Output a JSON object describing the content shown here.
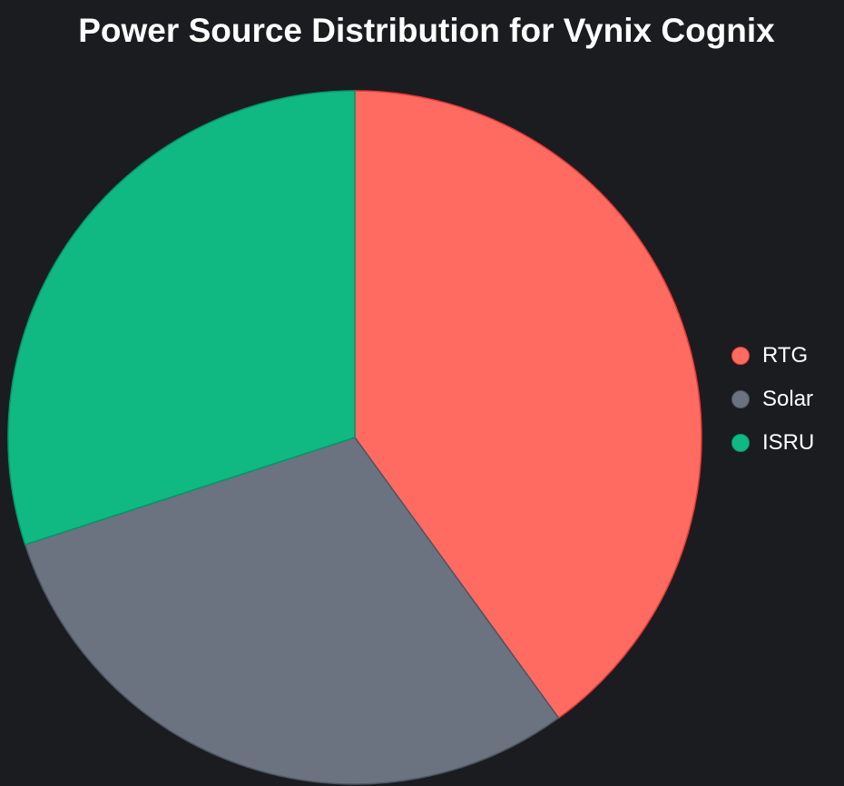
{
  "chart_data": {
    "type": "pie",
    "title": "Power Source Distribution for Vynix Cognix",
    "categories": [
      "RTG",
      "Solar",
      "ISRU"
    ],
    "values": [
      40,
      30,
      30
    ],
    "colors": [
      "#ff6b61",
      "#6b7280",
      "#10b981"
    ],
    "stroke_colors": [
      "#e53935",
      "#4b5563",
      "#059669"
    ],
    "start_angle_deg": 0,
    "direction": "clockwise",
    "legend_position": "right"
  }
}
